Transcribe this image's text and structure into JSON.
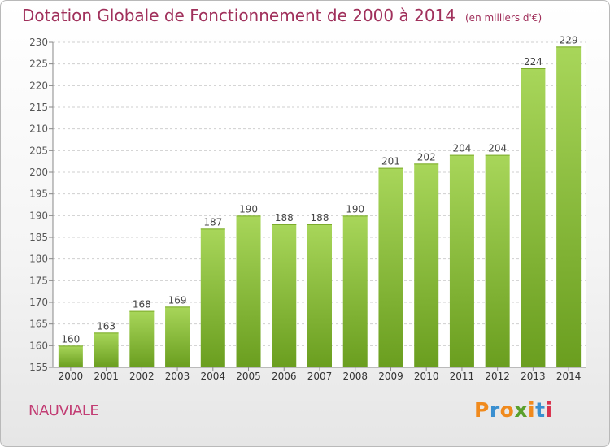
{
  "header": {
    "title": "Dotation Globale de Fonctionnement de 2000 à 2014",
    "unit_note": "(en milliers d'€)"
  },
  "footer": {
    "commune": "NAUVIALE",
    "brand": "Proxiti"
  },
  "colors": {
    "title": "#a0305b",
    "bar_light": "#a8d65a",
    "bar_dark": "#6a9e1f",
    "commune": "#c23c73",
    "logo_letters": [
      "#f08a1d",
      "#3a8fd0",
      "#f08a1d",
      "#5aa02c",
      "#f08a1d",
      "#3a8fd0",
      "#d9324d"
    ]
  },
  "chart_data": {
    "type": "bar",
    "title": "Dotation Globale de Fonctionnement de 2000 à 2014",
    "subtitle": "(en milliers d'€)",
    "xlabel": "",
    "ylabel": "",
    "categories": [
      "2000",
      "2001",
      "2002",
      "2003",
      "2004",
      "2005",
      "2006",
      "2007",
      "2008",
      "2009",
      "2010",
      "2011",
      "2012",
      "2013",
      "2014"
    ],
    "values": [
      160,
      163,
      168,
      169,
      187,
      190,
      188,
      188,
      190,
      201,
      202,
      204,
      204,
      224,
      229
    ],
    "ylim": [
      155,
      230
    ],
    "yticks": [
      155,
      160,
      165,
      170,
      175,
      180,
      185,
      190,
      195,
      200,
      205,
      210,
      215,
      220,
      225,
      230
    ],
    "grid": true,
    "legend": "none"
  }
}
